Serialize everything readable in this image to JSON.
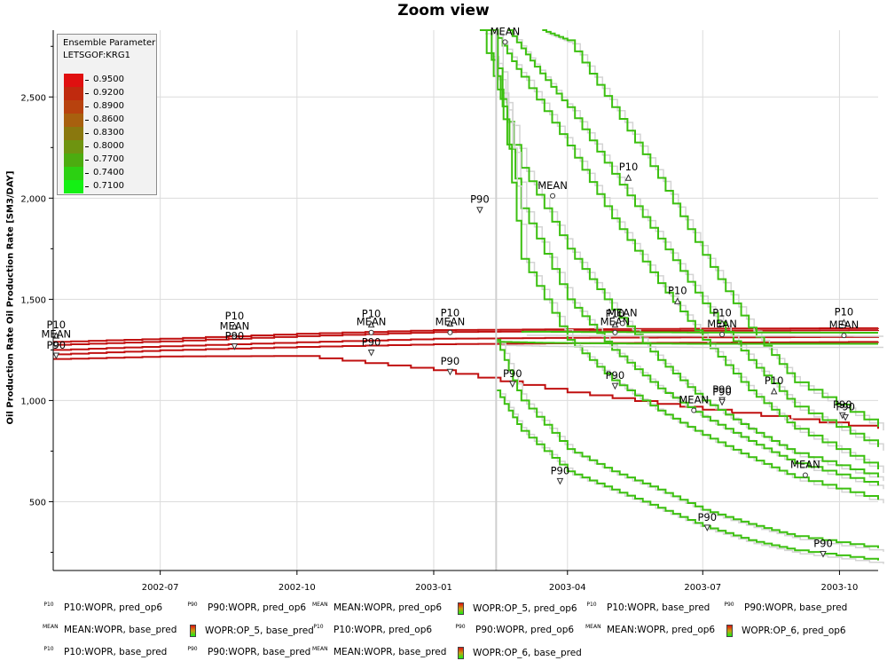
{
  "chart_data": {
    "type": "line",
    "title": "Zoom view",
    "xlabel": "",
    "ylabel": "Oil Production Rate Oil Production Rate [SM3/DAY]",
    "xlim": [
      "2002-04-20",
      "2003-10-27"
    ],
    "ylim": [
      160,
      2830
    ],
    "x_ticks": [
      "2002-07",
      "2002-10",
      "2003-01",
      "2003-04",
      "2003-07",
      "2003-10"
    ],
    "y_ticks": [
      "500",
      "1,000",
      "1,500",
      "2,000",
      "2,500"
    ],
    "grid": true,
    "colorbar": {
      "title": "Ensemble Parameter",
      "subtitle": "LETSGOF:KRG1",
      "placement": "top-left",
      "levels": [
        {
          "label": "0.9500",
          "color": "#e01010"
        },
        {
          "label": "0.9200",
          "color": "#c02a0e"
        },
        {
          "label": "0.8900",
          "color": "#b8420e"
        },
        {
          "label": "0.8600",
          "color": "#a8600e"
        },
        {
          "label": "0.8300",
          "color": "#8a780e"
        },
        {
          "label": "0.8000",
          "color": "#6e9410"
        },
        {
          "label": "0.7700",
          "color": "#4cac10"
        },
        {
          "label": "0.7400",
          "color": "#2cd012"
        },
        {
          "label": "0.7100",
          "color": "#14f014"
        }
      ]
    },
    "series": [
      {
        "group": "red-history",
        "color": "#c01010",
        "x": [
          "2002-04-20",
          "2002-07-01",
          "2002-10-01",
          "2003-01-01",
          "2003-04-01",
          "2003-07-01",
          "2003-10-27"
        ],
        "y": [
          1290,
          1305,
          1330,
          1348,
          1352,
          1355,
          1358
        ]
      },
      {
        "group": "red-history",
        "color": "#c01010",
        "x": [
          "2002-04-20",
          "2002-07-01",
          "2002-10-01",
          "2003-01-01",
          "2003-04-01",
          "2003-07-01",
          "2003-10-27"
        ],
        "y": [
          1275,
          1292,
          1318,
          1338,
          1343,
          1345,
          1348
        ]
      },
      {
        "group": "red-history",
        "color": "#c01010",
        "x": [
          "2002-04-20",
          "2002-07-01",
          "2002-10-01",
          "2003-01-01",
          "2003-04-01",
          "2003-07-01",
          "2003-10-27"
        ],
        "y": [
          1250,
          1268,
          1288,
          1305,
          1310,
          1312,
          1314
        ]
      },
      {
        "group": "red-history",
        "color": "#c01010",
        "x": [
          "2002-04-20",
          "2002-07-01",
          "2002-10-01",
          "2003-01-01",
          "2003-04-01",
          "2003-07-01",
          "2003-10-27"
        ],
        "y": [
          1228,
          1248,
          1265,
          1278,
          1283,
          1286,
          1290
        ]
      },
      {
        "group": "red-history",
        "color": "#c01010",
        "x": [
          "2002-04-20",
          "2002-07-01",
          "2002-10-01",
          "2003-01-01",
          "2003-04-01",
          "2003-07-01",
          "2003-10-27"
        ],
        "y": [
          1205,
          1218,
          1220,
          1150,
          1040,
          955,
          860
        ]
      },
      {
        "group": "green-pred",
        "color": "#3cc010",
        "x": [
          "2003-02-10",
          "2003-03-01",
          "2003-04-01",
          "2003-05-01",
          "2003-06-01",
          "2003-07-01",
          "2003-08-01",
          "2003-09-01",
          "2003-10-27"
        ],
        "y": [
          2830,
          2600,
          2260,
          1900,
          1580,
          1300,
          1050,
          860,
          660
        ]
      },
      {
        "group": "green-pred",
        "color": "#3cc010",
        "x": [
          "2003-02-20",
          "2003-03-10",
          "2003-04-01",
          "2003-05-01",
          "2003-06-01",
          "2003-07-01",
          "2003-08-01",
          "2003-09-01",
          "2003-10-27"
        ],
        "y": [
          2830,
          2650,
          2450,
          2120,
          1800,
          1480,
          1200,
          970,
          770
        ]
      },
      {
        "group": "green-pred",
        "color": "#3cc010",
        "x": [
          "2003-03-15",
          "2003-04-01",
          "2003-05-01",
          "2003-06-01",
          "2003-07-01",
          "2003-08-01",
          "2003-09-01",
          "2003-10-27"
        ],
        "y": [
          2830,
          2780,
          2450,
          2100,
          1720,
          1360,
          1090,
          870
        ]
      },
      {
        "group": "green-pred",
        "color": "#3cc010",
        "x": [
          "2003-02-01",
          "2003-03-01",
          "2003-04-01",
          "2003-05-01",
          "2003-06-01",
          "2003-07-01",
          "2003-08-01",
          "2003-09-01",
          "2003-10-27"
        ],
        "y": [
          2830,
          2150,
          1750,
          1450,
          1200,
          1000,
          860,
          740,
          620
        ]
      },
      {
        "group": "green-pred",
        "color": "#3cc010",
        "x": [
          "2003-02-05",
          "2003-03-01",
          "2003-04-01",
          "2003-05-01",
          "2003-06-01",
          "2003-07-01",
          "2003-08-01",
          "2003-09-01",
          "2003-10-27"
        ],
        "y": [
          2830,
          1950,
          1500,
          1250,
          1060,
          920,
          800,
          690,
          580
        ]
      },
      {
        "group": "green-pred",
        "color": "#3cc010",
        "x": [
          "2003-02-10",
          "2003-03-01",
          "2003-04-01",
          "2003-05-01",
          "2003-06-01",
          "2003-07-01",
          "2003-08-01",
          "2003-09-01",
          "2003-10-27"
        ],
        "y": [
          2830,
          1700,
          1300,
          1100,
          950,
          830,
          720,
          620,
          510
        ]
      },
      {
        "group": "green-pred",
        "color": "#3cc010",
        "x": [
          "2003-02-12",
          "2003-03-01",
          "2003-04-01",
          "2003-05-01",
          "2003-06-01",
          "2003-07-01",
          "2003-08-01",
          "2003-09-01",
          "2003-10-27"
        ],
        "y": [
          1050,
          850,
          650,
          560,
          470,
          380,
          310,
          260,
          210
        ]
      },
      {
        "group": "green-pred",
        "color": "#3cc010",
        "x": [
          "2003-02-12",
          "2003-03-01",
          "2003-04-01",
          "2003-05-01",
          "2003-06-01",
          "2003-07-01",
          "2003-08-01",
          "2003-09-01",
          "2003-10-27"
        ],
        "y": [
          1300,
          1000,
          760,
          650,
          560,
          460,
          390,
          330,
          270
        ]
      },
      {
        "group": "green-pred",
        "color": "#3cc010",
        "x": [
          "2003-02-12",
          "2003-03-15",
          "2003-05-01",
          "2003-07-01",
          "2003-10-27"
        ],
        "y": [
          1290,
          1285,
          1282,
          1280,
          1280
        ]
      },
      {
        "group": "green-pred",
        "color": "#3cc010",
        "x": [
          "2003-03-01",
          "2003-05-01",
          "2003-07-01",
          "2003-10-27"
        ],
        "y": [
          1340,
          1338,
          1336,
          1335
        ]
      }
    ],
    "annotations": [
      {
        "text": "P10",
        "x": "2002-04-22",
        "y": 1330
      },
      {
        "text": "MEAN",
        "x": "2002-04-22",
        "y": 1285
      },
      {
        "text": "P90",
        "x": "2002-04-22",
        "y": 1230
      },
      {
        "text": "P10",
        "x": "2002-08-20",
        "y": 1375
      },
      {
        "text": "MEAN",
        "x": "2002-08-20",
        "y": 1325
      },
      {
        "text": "P90",
        "x": "2002-08-20",
        "y": 1275
      },
      {
        "text": "P10",
        "x": "2002-11-20",
        "y": 1385
      },
      {
        "text": "MEAN",
        "x": "2002-11-20",
        "y": 1345
      },
      {
        "text": "P90",
        "x": "2002-11-20",
        "y": 1245
      },
      {
        "text": "P10",
        "x": "2003-01-12",
        "y": 1390
      },
      {
        "text": "MEAN",
        "x": "2003-01-12",
        "y": 1345
      },
      {
        "text": "P90",
        "x": "2003-01-12",
        "y": 1150
      },
      {
        "text": "P90",
        "x": "2003-02-01",
        "y": 1950
      },
      {
        "text": "MEAN",
        "x": "2003-02-18",
        "y": 2780
      },
      {
        "text": "P90",
        "x": "2003-02-23",
        "y": 1090
      },
      {
        "text": "MEAN",
        "x": "2003-03-22",
        "y": 2020
      },
      {
        "text": "P10",
        "x": "2003-05-12",
        "y": 2110
      },
      {
        "text": "P10",
        "x": "2003-05-03",
        "y": 1385
      },
      {
        "text": "MEAN",
        "x": "2003-05-03",
        "y": 1345
      },
      {
        "text": "MEAN",
        "x": "2003-05-08",
        "y": 1390
      },
      {
        "text": "P90",
        "x": "2003-05-03",
        "y": 1080
      },
      {
        "text": "P90",
        "x": "2003-03-27",
        "y": 610
      },
      {
        "text": "P10",
        "x": "2003-06-14",
        "y": 1500
      },
      {
        "text": "P10",
        "x": "2003-07-14",
        "y": 1390
      },
      {
        "text": "MEAN",
        "x": "2003-07-14",
        "y": 1335
      },
      {
        "text": "MEAN",
        "x": "2003-06-25",
        "y": 960
      },
      {
        "text": "P90",
        "x": "2003-07-14",
        "y": 1010
      },
      {
        "text": "P90",
        "x": "2003-07-14",
        "y": 1000
      },
      {
        "text": "P90",
        "x": "2003-07-04",
        "y": 380
      },
      {
        "text": "P10",
        "x": "2003-08-18",
        "y": 1055
      },
      {
        "text": "MEAN",
        "x": "2003-09-08",
        "y": 640
      },
      {
        "text": "P90",
        "x": "2003-09-20",
        "y": 250
      },
      {
        "text": "P90",
        "x": "2003-10-03",
        "y": 935
      },
      {
        "text": "P90",
        "x": "2003-10-05",
        "y": 925
      },
      {
        "text": "P10",
        "x": "2003-10-04",
        "y": 1395
      },
      {
        "text": "MEAN",
        "x": "2003-10-04",
        "y": 1330
      }
    ]
  },
  "bottom_legend": [
    {
      "icon": "p10-marker-icon",
      "icon_text": "P10",
      "label": "P10:WOPR, pred_op6"
    },
    {
      "icon": "p90-marker-icon",
      "icon_text": "P90",
      "label": "P90:WOPR, pred_op6"
    },
    {
      "icon": "mean-marker-icon",
      "icon_text": "MEAN",
      "label": "MEAN:WOPR, pred_op6"
    },
    {
      "icon": "colorbar-icon",
      "icon_text": "",
      "label": "WOPR:OP_5, pred_op6"
    },
    {
      "icon": "p10-marker-icon",
      "icon_text": "P10",
      "label": "P10:WOPR, base_pred"
    },
    {
      "icon": "p90-marker-icon",
      "icon_text": "P90",
      "label": "P90:WOPR, base_pred"
    },
    {
      "icon": "mean-marker-icon",
      "icon_text": "MEAN",
      "label": "MEAN:WOPR, base_pred"
    },
    {
      "icon": "colorbar-icon",
      "icon_text": "",
      "label": "WOPR:OP_5, base_pred"
    },
    {
      "icon": "p10-marker-icon",
      "icon_text": "P10",
      "label": "P10:WOPR, pred_op6"
    },
    {
      "icon": "p90-marker-icon",
      "icon_text": "P90",
      "label": "P90:WOPR, pred_op6"
    },
    {
      "icon": "mean-marker-icon",
      "icon_text": "MEAN",
      "label": "MEAN:WOPR, pred_op6"
    },
    {
      "icon": "colorbar-icon",
      "icon_text": "",
      "label": "WOPR:OP_6, pred_op6"
    },
    {
      "icon": "p10-marker-icon",
      "icon_text": "P10",
      "label": "P10:WOPR, base_pred"
    },
    {
      "icon": "p90-marker-icon",
      "icon_text": "P90",
      "label": "P90:WOPR, base_pred"
    },
    {
      "icon": "mean-marker-icon",
      "icon_text": "MEAN",
      "label": "MEAN:WOPR, base_pred"
    },
    {
      "icon": "colorbar-icon",
      "icon_text": "",
      "label": "WOPR:OP_6, base_pred"
    }
  ]
}
